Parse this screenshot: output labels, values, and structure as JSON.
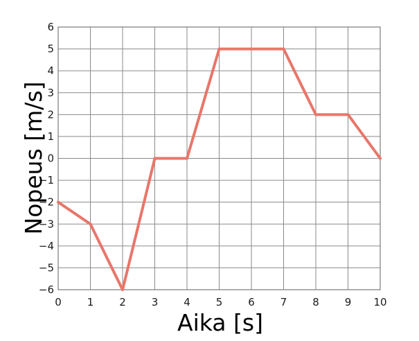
{
  "chart_data": {
    "type": "line",
    "title": "",
    "xlabel": "Aika [s]",
    "ylabel": "Nopeus [m/s]",
    "xlim": [
      0,
      10
    ],
    "ylim": [
      -6,
      6
    ],
    "xticks": [
      "0",
      "1",
      "2",
      "3",
      "4",
      "5",
      "6",
      "7",
      "8",
      "9",
      "10"
    ],
    "yticks": [
      "6",
      "5",
      "4",
      "3",
      "2",
      "1",
      "0",
      "−1",
      "−2",
      "−3",
      "−4",
      "−5",
      "−6"
    ],
    "grid": true,
    "x": [
      0,
      1,
      2,
      3,
      4,
      5,
      6,
      7,
      8,
      9,
      10
    ],
    "y": [
      -2,
      -3,
      -6,
      0,
      0,
      5,
      5,
      5,
      2,
      2,
      0
    ],
    "line_color": "#e8766a",
    "grid_color": "#8a8a8a"
  }
}
